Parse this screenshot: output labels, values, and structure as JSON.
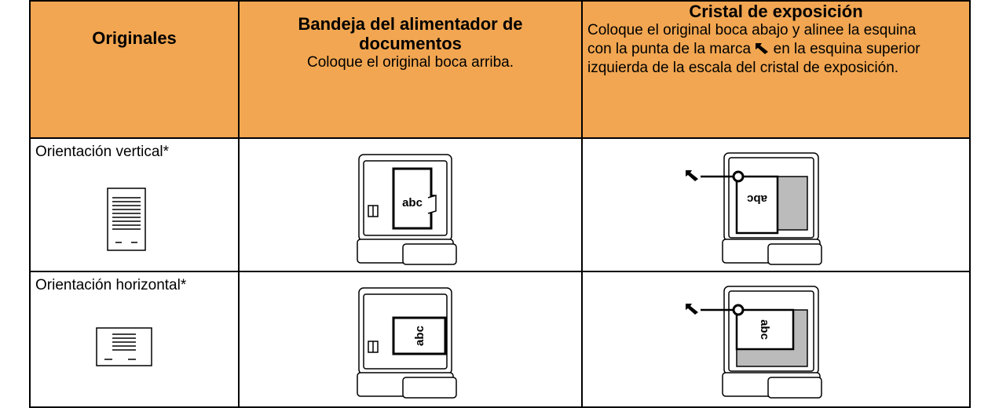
{
  "table": {
    "header": [
      {
        "title": "Originales"
      },
      {
        "title": "Bandeja del alimentador de documentos",
        "description": "Coloque el original boca arriba."
      },
      {
        "title": "Cristal de exposición",
        "description_before": "Coloque el original boca abajo y alinee la esquina con la punta de la marca",
        "description_after": "en la esquina superior izquierda de la escala del cristal de exposición."
      }
    ],
    "rows": [
      {
        "label": "Orientación vertical*"
      },
      {
        "label": "Orientación horizontal*"
      }
    ]
  },
  "illustration_text": "abc"
}
